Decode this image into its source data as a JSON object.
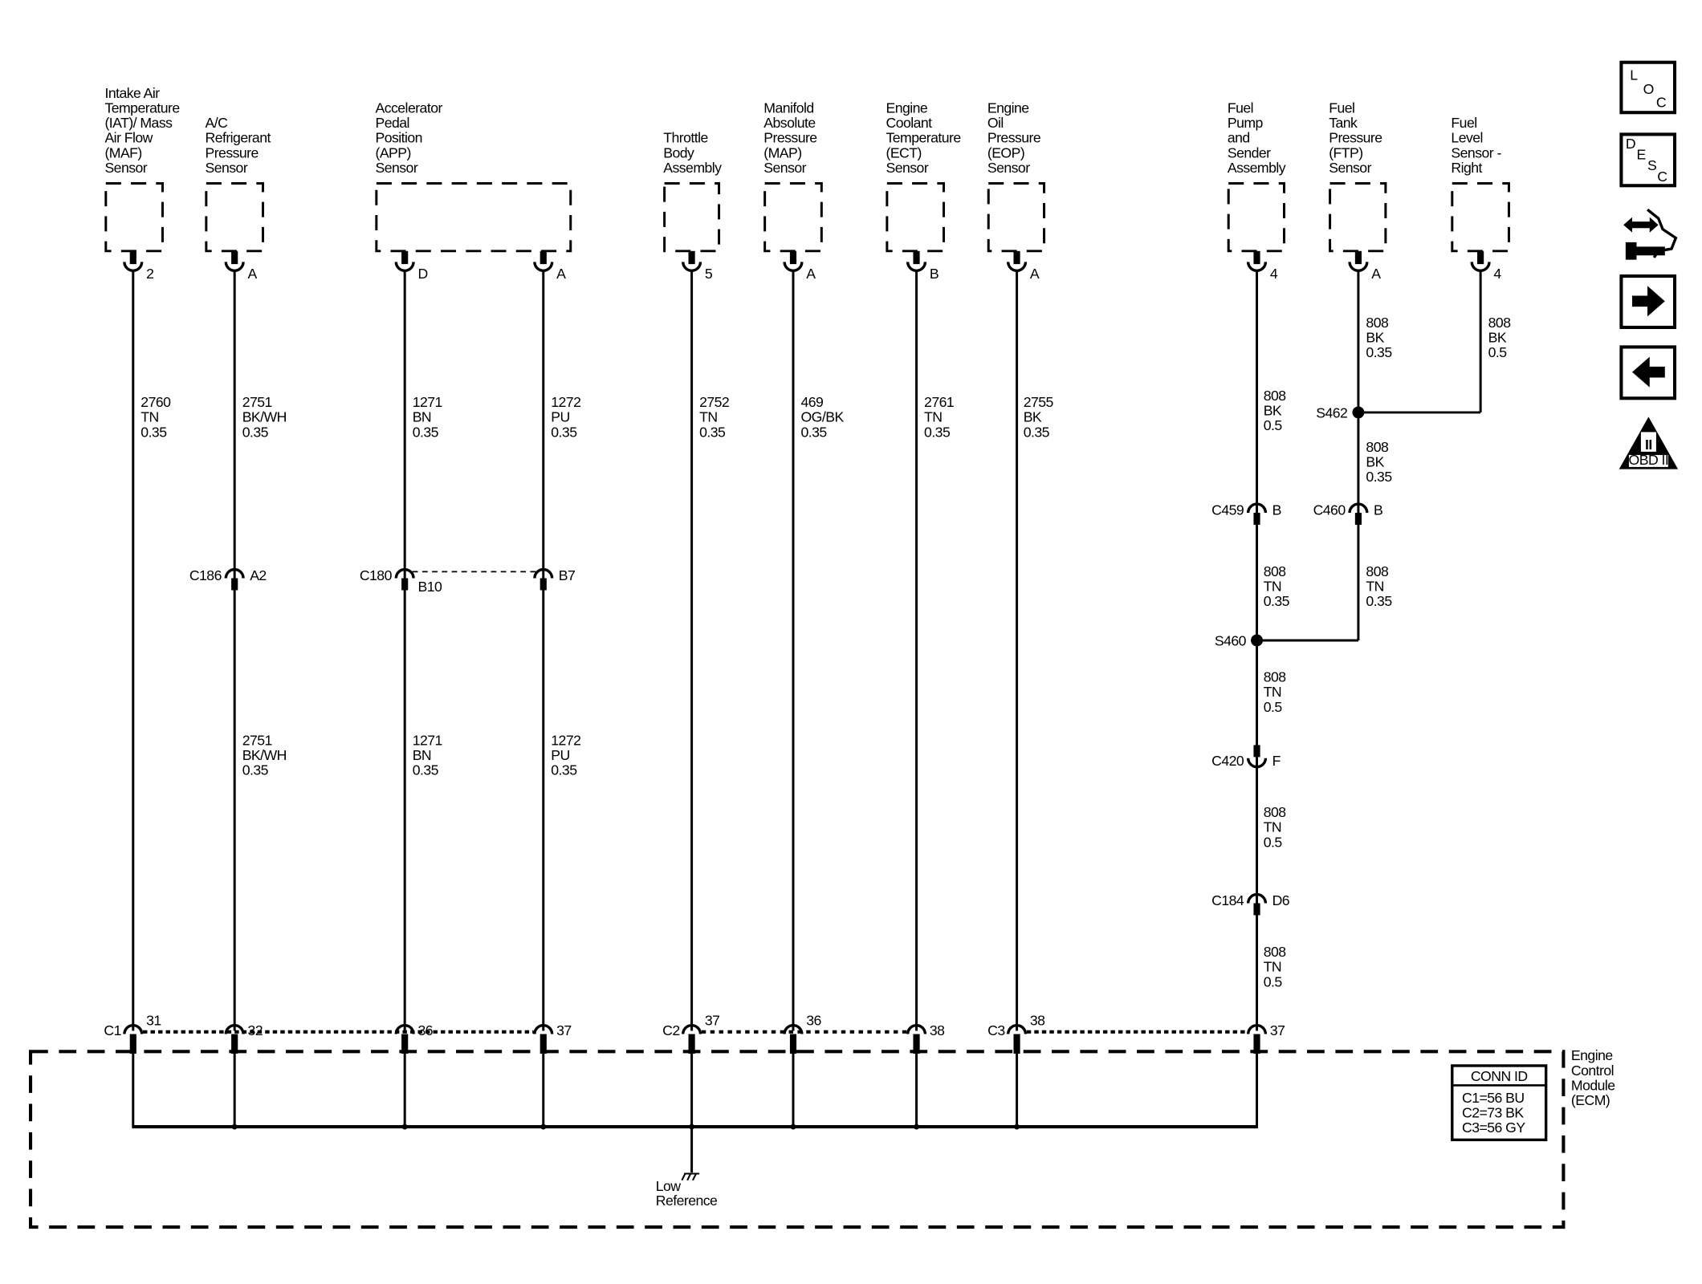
{
  "sensors": [
    {
      "name_lines": [
        "Intake Air",
        "Temperature",
        "(IAT)/ Mass",
        "Air Flow",
        "(MAF)",
        "Sensor"
      ],
      "pins": [
        "2"
      ]
    },
    {
      "name_lines": [
        "A/C",
        "Refrigerant",
        "Pressure",
        "Sensor"
      ],
      "pins": [
        "A"
      ]
    },
    {
      "name_lines": [
        "Accelerator",
        "Pedal",
        "Position",
        "(APP)",
        "Sensor"
      ],
      "pins": [
        "D",
        "A"
      ]
    },
    {
      "name_lines": [
        "Throttle",
        "Body",
        "Assembly"
      ],
      "pins": [
        "5"
      ]
    },
    {
      "name_lines": [
        "Manifold",
        "Absolute",
        "Pressure",
        "(MAP)",
        "Sensor"
      ],
      "pins": [
        "A"
      ]
    },
    {
      "name_lines": [
        "Engine",
        "Coolant",
        "Temperature",
        "(ECT)",
        "Sensor"
      ],
      "pins": [
        "B"
      ]
    },
    {
      "name_lines": [
        "Engine",
        "Oil",
        "Pressure",
        "(EOP)",
        "Sensor"
      ],
      "pins": [
        "A"
      ]
    },
    {
      "name_lines": [
        "Fuel",
        "Pump",
        "and",
        "Sender",
        "Assembly"
      ],
      "pins": [
        "4"
      ]
    },
    {
      "name_lines": [
        "Fuel",
        "Tank",
        "Pressure",
        "(FTP)",
        "Sensor"
      ],
      "pins": [
        "A"
      ]
    },
    {
      "name_lines": [
        "Fuel",
        "Level",
        "Sensor -",
        "Right"
      ],
      "pins": [
        "4"
      ]
    }
  ],
  "wire_labels": [
    [
      "2760",
      "TN",
      "0.35"
    ],
    [
      "2751",
      "BK/WH",
      "0.35"
    ],
    [
      "1271",
      "BN",
      "0.35"
    ],
    [
      "1272",
      "PU",
      "0.35"
    ],
    [
      "2752",
      "TN",
      "0.35"
    ],
    [
      "469",
      "OG/BK",
      "0.35"
    ],
    [
      "2761",
      "TN",
      "0.35"
    ],
    [
      "2755",
      "BK",
      "0.35"
    ],
    [
      "2751",
      "BK/WH",
      "0.35"
    ],
    [
      "1271",
      "BN",
      "0.35"
    ],
    [
      "1272",
      "PU",
      "0.35"
    ],
    [
      "808",
      "BK",
      "0.35"
    ],
    [
      "808",
      "BK",
      "0.5"
    ],
    [
      "808",
      "BK",
      "0.5"
    ],
    [
      "808",
      "BK",
      "0.35"
    ],
    [
      "808",
      "TN",
      "0.35"
    ],
    [
      "808",
      "TN",
      "0.35"
    ],
    [
      "808",
      "TN",
      "0.5"
    ],
    [
      "808",
      "TN",
      "0.5"
    ],
    [
      "808",
      "TN",
      "0.5"
    ]
  ],
  "inline_connectors": [
    {
      "id": "C186",
      "pin": "A2"
    },
    {
      "id": "C180",
      "pin": "B10"
    },
    {
      "id": "",
      "pin": "B7"
    },
    {
      "id": "C459",
      "pin": "B"
    },
    {
      "id": "C460",
      "pin": "B"
    },
    {
      "id": "C420",
      "pin": "F"
    },
    {
      "id": "C184",
      "pin": "D6"
    }
  ],
  "splices": [
    "S462",
    "S460"
  ],
  "ecm_connectors": [
    {
      "id": "C1",
      "pins": [
        "31",
        "32",
        "36",
        "37"
      ]
    },
    {
      "id": "C2",
      "pins": [
        "37",
        "36",
        "38"
      ]
    },
    {
      "id": "C3",
      "pins": [
        "38",
        "37"
      ]
    }
  ],
  "ground_label": [
    "Low",
    "Reference"
  ],
  "ecm_label": [
    "Engine",
    "Control",
    "Module",
    "(ECM)"
  ],
  "conn_id": {
    "title": "CONN ID",
    "rows": [
      "C1=56 BU",
      "C2=73 BK",
      "C3=56 GY"
    ]
  },
  "nav_icons": [
    {
      "name": "loc-icon",
      "letters": [
        "L",
        "O",
        "C"
      ]
    },
    {
      "name": "desc-icon",
      "letters": [
        "D",
        "E",
        "S",
        "C"
      ]
    },
    {
      "name": "connector-end-view-icon"
    },
    {
      "name": "next-page-arrow-icon"
    },
    {
      "name": "previous-page-arrow-icon"
    },
    {
      "name": "obd-ii-icon",
      "text": [
        "II",
        "OBD II"
      ]
    }
  ]
}
